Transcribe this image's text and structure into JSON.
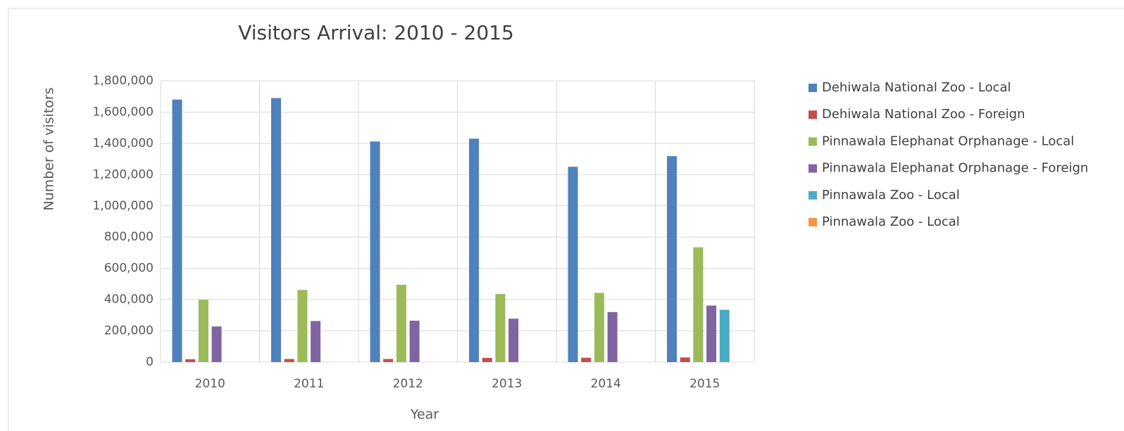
{
  "chart_data": {
    "type": "bar",
    "title": "Visitors Arrival: 2010 - 2015",
    "x_label": "Year",
    "y_label": "Number of visitors",
    "categories": [
      "2010",
      "2011",
      "2012",
      "2013",
      "2014",
      "2015"
    ],
    "series": [
      {
        "name": "Dehiwala National Zoo - Local",
        "color": "#4f81bd",
        "values": [
          1680000,
          1690000,
          1412000,
          1430000,
          1250000,
          1318000
        ]
      },
      {
        "name": "Dehiwala National Zoo - Foreign",
        "color": "#c0504d",
        "values": [
          18000,
          20000,
          20000,
          27000,
          28000,
          30000
        ]
      },
      {
        "name": "Pinnawala Elephanat Orphanage - Local",
        "color": "#9bbb59",
        "values": [
          400000,
          462000,
          495000,
          436000,
          443000,
          735000
        ]
      },
      {
        "name": "Pinnawala Elephanat Orphanage - Foreign",
        "color": "#8064a2",
        "values": [
          228000,
          263000,
          265000,
          278000,
          320000,
          362000
        ]
      },
      {
        "name": "Pinnawala Zoo - Local",
        "color": "#4bacc6",
        "values": [
          0,
          0,
          0,
          0,
          0,
          335000
        ]
      },
      {
        "name": "Pinnawala Zoo - Local",
        "color": "#f79646",
        "values": [
          0,
          0,
          0,
          0,
          0,
          0
        ]
      }
    ],
    "ylim": [
      0,
      1800000
    ],
    "yticks": [
      0,
      {
        "value": 200000,
        "label": "200,000"
      },
      {
        "value": 400000,
        "label": "400,000"
      },
      {
        "value": 600000,
        "label": "600,000"
      },
      {
        "value": 800000,
        "label": "800,000"
      },
      {
        "value": 1000000,
        "label": "1,000,000"
      },
      {
        "value": 1200000,
        "label": "1,200,000"
      },
      {
        "value": 1400000,
        "label": "1,400,000"
      },
      {
        "value": 1600000,
        "label": "1,600,000"
      },
      {
        "value": 1800000,
        "label": "1,800,000"
      }
    ],
    "grid": true,
    "legend": "right"
  }
}
